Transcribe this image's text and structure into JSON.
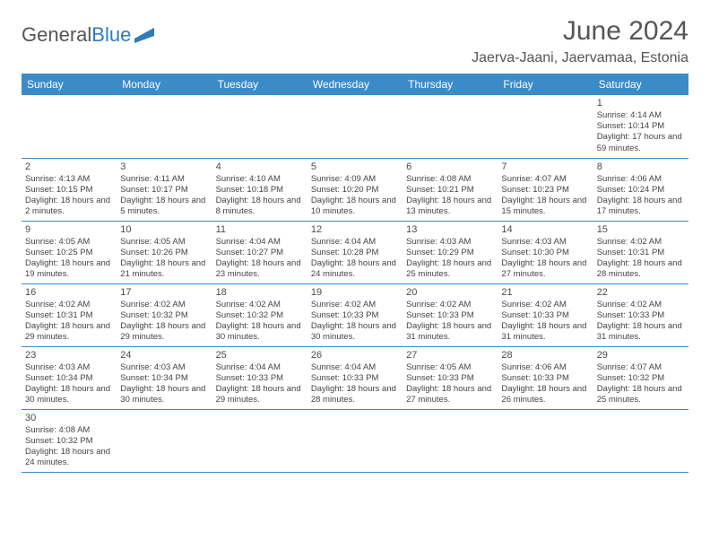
{
  "brand": {
    "part1": "General",
    "part2": "Blue"
  },
  "title": "June 2024",
  "location": "Jaerva-Jaani, Jaervamaa, Estonia",
  "colors": {
    "header_bg": "#3b8bc9",
    "header_text": "#ffffff",
    "cell_border_top": "#b8c4cc",
    "cell_border_bottom": "#3b8bc9",
    "text": "#444444",
    "title_color": "#555555"
  },
  "day_headers": [
    "Sunday",
    "Monday",
    "Tuesday",
    "Wednesday",
    "Thursday",
    "Friday",
    "Saturday"
  ],
  "weeks": [
    [
      null,
      null,
      null,
      null,
      null,
      null,
      {
        "n": "1",
        "sr": "Sunrise: 4:14 AM",
        "ss": "Sunset: 10:14 PM",
        "dl": "Daylight: 17 hours and 59 minutes."
      }
    ],
    [
      {
        "n": "2",
        "sr": "Sunrise: 4:13 AM",
        "ss": "Sunset: 10:15 PM",
        "dl": "Daylight: 18 hours and 2 minutes."
      },
      {
        "n": "3",
        "sr": "Sunrise: 4:11 AM",
        "ss": "Sunset: 10:17 PM",
        "dl": "Daylight: 18 hours and 5 minutes."
      },
      {
        "n": "4",
        "sr": "Sunrise: 4:10 AM",
        "ss": "Sunset: 10:18 PM",
        "dl": "Daylight: 18 hours and 8 minutes."
      },
      {
        "n": "5",
        "sr": "Sunrise: 4:09 AM",
        "ss": "Sunset: 10:20 PM",
        "dl": "Daylight: 18 hours and 10 minutes."
      },
      {
        "n": "6",
        "sr": "Sunrise: 4:08 AM",
        "ss": "Sunset: 10:21 PM",
        "dl": "Daylight: 18 hours and 13 minutes."
      },
      {
        "n": "7",
        "sr": "Sunrise: 4:07 AM",
        "ss": "Sunset: 10:23 PM",
        "dl": "Daylight: 18 hours and 15 minutes."
      },
      {
        "n": "8",
        "sr": "Sunrise: 4:06 AM",
        "ss": "Sunset: 10:24 PM",
        "dl": "Daylight: 18 hours and 17 minutes."
      }
    ],
    [
      {
        "n": "9",
        "sr": "Sunrise: 4:05 AM",
        "ss": "Sunset: 10:25 PM",
        "dl": "Daylight: 18 hours and 19 minutes."
      },
      {
        "n": "10",
        "sr": "Sunrise: 4:05 AM",
        "ss": "Sunset: 10:26 PM",
        "dl": "Daylight: 18 hours and 21 minutes."
      },
      {
        "n": "11",
        "sr": "Sunrise: 4:04 AM",
        "ss": "Sunset: 10:27 PM",
        "dl": "Daylight: 18 hours and 23 minutes."
      },
      {
        "n": "12",
        "sr": "Sunrise: 4:04 AM",
        "ss": "Sunset: 10:28 PM",
        "dl": "Daylight: 18 hours and 24 minutes."
      },
      {
        "n": "13",
        "sr": "Sunrise: 4:03 AM",
        "ss": "Sunset: 10:29 PM",
        "dl": "Daylight: 18 hours and 25 minutes."
      },
      {
        "n": "14",
        "sr": "Sunrise: 4:03 AM",
        "ss": "Sunset: 10:30 PM",
        "dl": "Daylight: 18 hours and 27 minutes."
      },
      {
        "n": "15",
        "sr": "Sunrise: 4:02 AM",
        "ss": "Sunset: 10:31 PM",
        "dl": "Daylight: 18 hours and 28 minutes."
      }
    ],
    [
      {
        "n": "16",
        "sr": "Sunrise: 4:02 AM",
        "ss": "Sunset: 10:31 PM",
        "dl": "Daylight: 18 hours and 29 minutes."
      },
      {
        "n": "17",
        "sr": "Sunrise: 4:02 AM",
        "ss": "Sunset: 10:32 PM",
        "dl": "Daylight: 18 hours and 29 minutes."
      },
      {
        "n": "18",
        "sr": "Sunrise: 4:02 AM",
        "ss": "Sunset: 10:32 PM",
        "dl": "Daylight: 18 hours and 30 minutes."
      },
      {
        "n": "19",
        "sr": "Sunrise: 4:02 AM",
        "ss": "Sunset: 10:33 PM",
        "dl": "Daylight: 18 hours and 30 minutes."
      },
      {
        "n": "20",
        "sr": "Sunrise: 4:02 AM",
        "ss": "Sunset: 10:33 PM",
        "dl": "Daylight: 18 hours and 31 minutes."
      },
      {
        "n": "21",
        "sr": "Sunrise: 4:02 AM",
        "ss": "Sunset: 10:33 PM",
        "dl": "Daylight: 18 hours and 31 minutes."
      },
      {
        "n": "22",
        "sr": "Sunrise: 4:02 AM",
        "ss": "Sunset: 10:33 PM",
        "dl": "Daylight: 18 hours and 31 minutes."
      }
    ],
    [
      {
        "n": "23",
        "sr": "Sunrise: 4:03 AM",
        "ss": "Sunset: 10:34 PM",
        "dl": "Daylight: 18 hours and 30 minutes."
      },
      {
        "n": "24",
        "sr": "Sunrise: 4:03 AM",
        "ss": "Sunset: 10:34 PM",
        "dl": "Daylight: 18 hours and 30 minutes."
      },
      {
        "n": "25",
        "sr": "Sunrise: 4:04 AM",
        "ss": "Sunset: 10:33 PM",
        "dl": "Daylight: 18 hours and 29 minutes."
      },
      {
        "n": "26",
        "sr": "Sunrise: 4:04 AM",
        "ss": "Sunset: 10:33 PM",
        "dl": "Daylight: 18 hours and 28 minutes."
      },
      {
        "n": "27",
        "sr": "Sunrise: 4:05 AM",
        "ss": "Sunset: 10:33 PM",
        "dl": "Daylight: 18 hours and 27 minutes."
      },
      {
        "n": "28",
        "sr": "Sunrise: 4:06 AM",
        "ss": "Sunset: 10:33 PM",
        "dl": "Daylight: 18 hours and 26 minutes."
      },
      {
        "n": "29",
        "sr": "Sunrise: 4:07 AM",
        "ss": "Sunset: 10:32 PM",
        "dl": "Daylight: 18 hours and 25 minutes."
      }
    ],
    [
      {
        "n": "30",
        "sr": "Sunrise: 4:08 AM",
        "ss": "Sunset: 10:32 PM",
        "dl": "Daylight: 18 hours and 24 minutes."
      },
      null,
      null,
      null,
      null,
      null,
      null
    ]
  ]
}
